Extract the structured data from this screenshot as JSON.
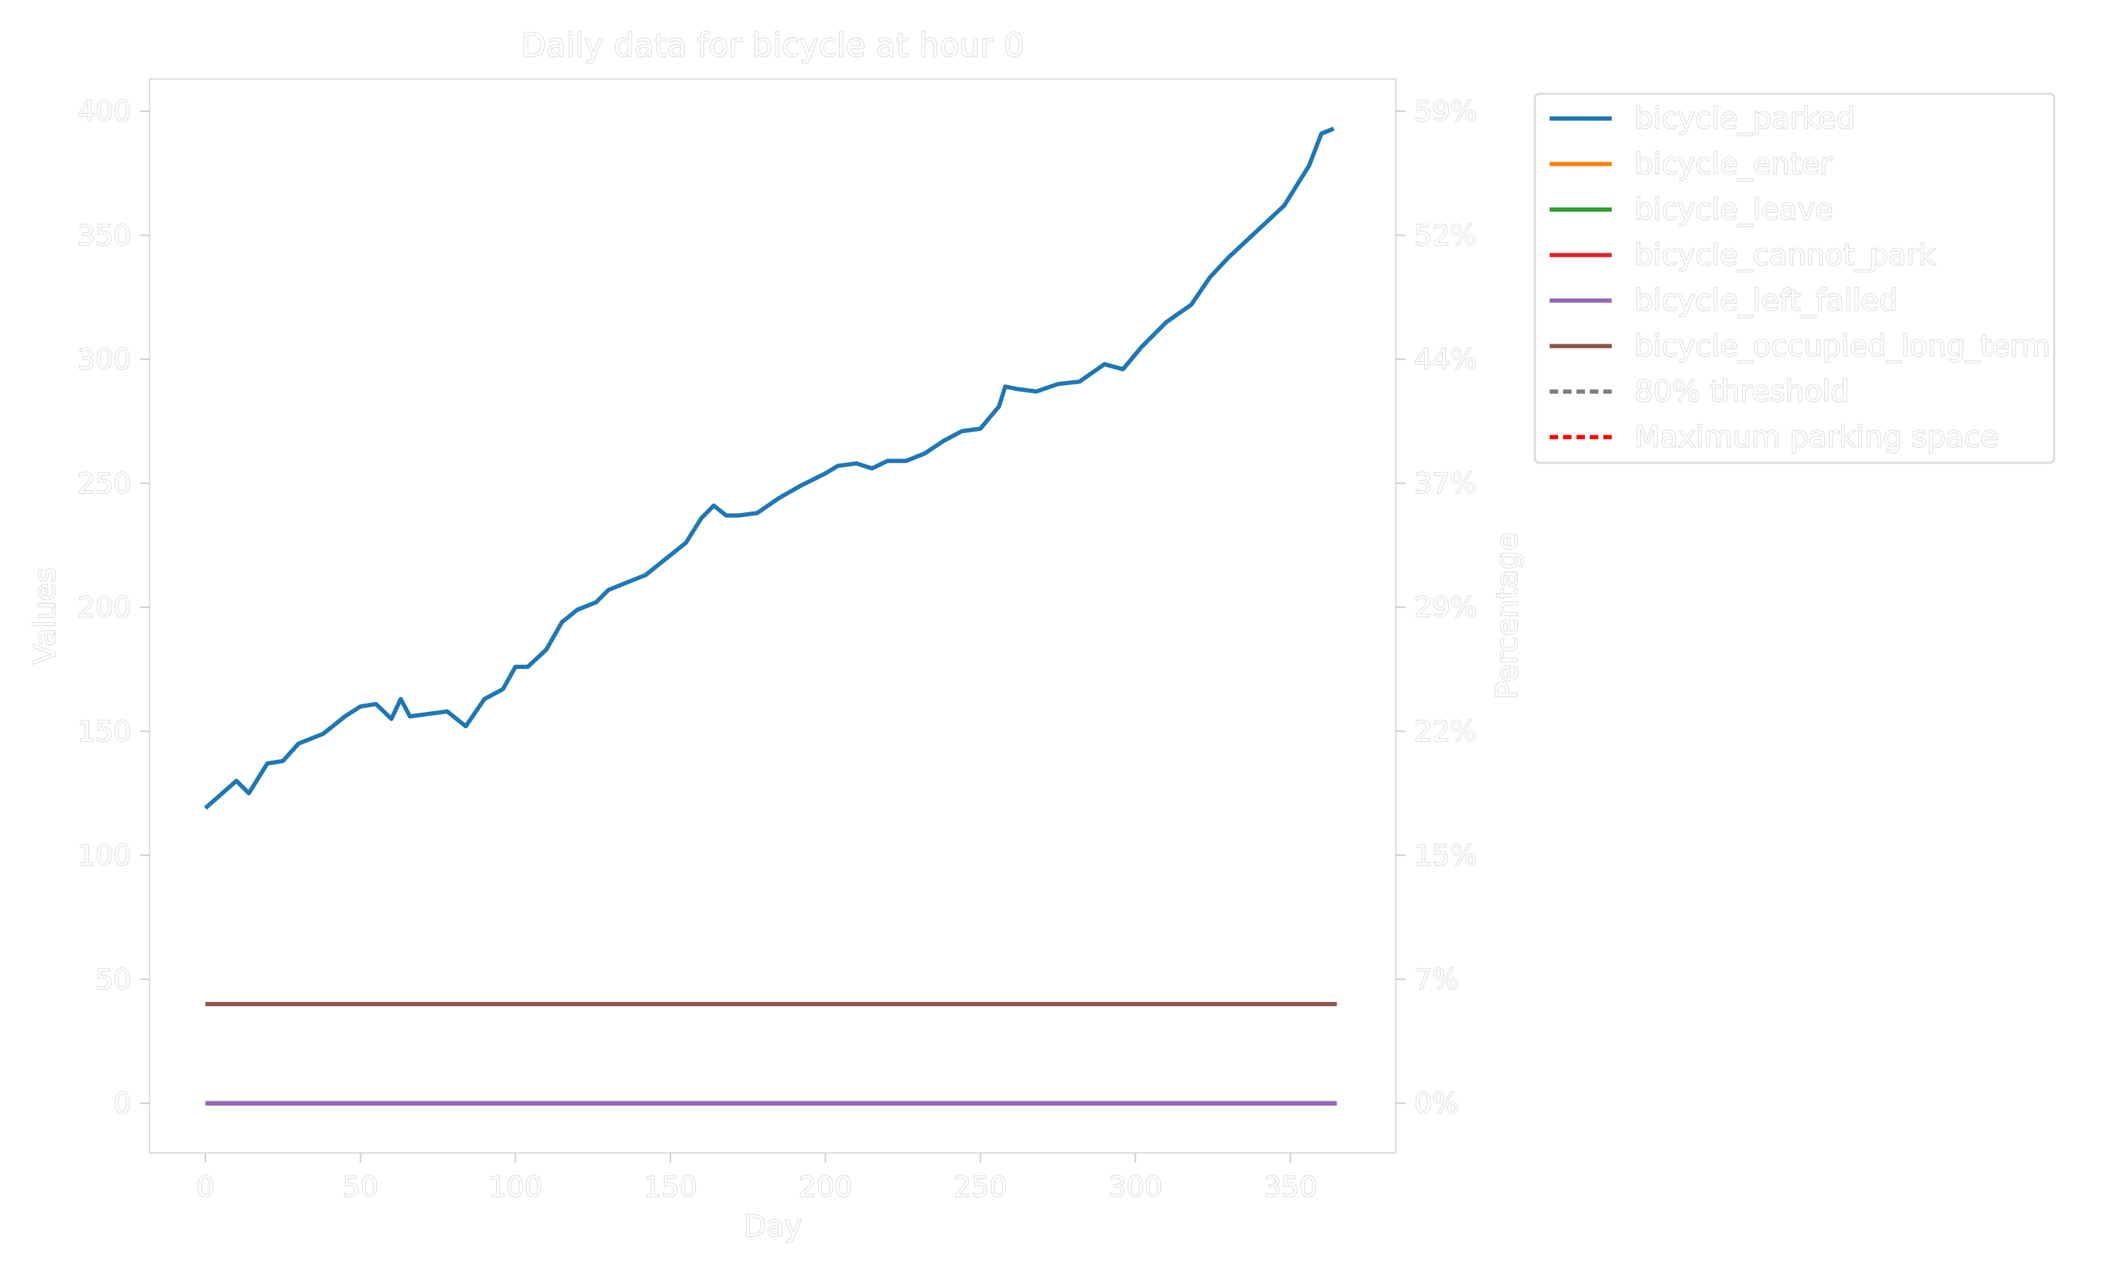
{
  "chart_data": {
    "type": "line",
    "title": "Daily data for bicycle at hour 0",
    "xlabel": "Day",
    "ylabel": "Values",
    "y2label": "Percentage",
    "xlim": [
      -18,
      384
    ],
    "ylim": [
      -20,
      413
    ],
    "x_ticks": [
      0,
      50,
      100,
      150,
      200,
      250,
      300,
      350
    ],
    "y_ticks": [
      0,
      50,
      100,
      150,
      200,
      250,
      300,
      350,
      400
    ],
    "y2_tick_labels": [
      "0%",
      "7%",
      "15%",
      "22%",
      "29%",
      "37%",
      "44%",
      "52%",
      "59%"
    ],
    "grid": false,
    "legend_position": "outside-right",
    "series": [
      {
        "name": "bicycle_parked",
        "color": "#1f77b4",
        "style": "solid",
        "x": [
          0,
          10,
          14,
          20,
          25,
          30,
          38,
          45,
          50,
          55,
          60,
          63,
          66,
          72,
          78,
          84,
          90,
          96,
          100,
          104,
          110,
          115,
          120,
          126,
          130,
          136,
          142,
          148,
          155,
          160,
          164,
          168,
          172,
          178,
          185,
          192,
          200,
          204,
          210,
          215,
          220,
          226,
          232,
          238,
          244,
          250,
          256,
          258,
          262,
          268,
          275,
          282,
          290,
          296,
          302,
          310,
          318,
          324,
          330,
          336,
          342,
          348,
          352,
          356,
          360,
          364
        ],
        "y": [
          119,
          130,
          125,
          137,
          138,
          145,
          149,
          156,
          160,
          161,
          155,
          163,
          156,
          157,
          158,
          152,
          163,
          167,
          176,
          176,
          183,
          194,
          199,
          202,
          207,
          210,
          213,
          219,
          226,
          236,
          241,
          237,
          237,
          238,
          244,
          249,
          254,
          257,
          258,
          256,
          259,
          259,
          262,
          267,
          271,
          272,
          281,
          289,
          288,
          287,
          290,
          291,
          298,
          296,
          305,
          315,
          322,
          333,
          341,
          348,
          355,
          362,
          370,
          378,
          391,
          393
        ]
      },
      {
        "name": "bicycle_enter",
        "color": "#ff7f0e",
        "style": "solid",
        "x": [
          0,
          365
        ],
        "y": [
          0,
          0
        ]
      },
      {
        "name": "bicycle_leave",
        "color": "#2ca02c",
        "style": "solid",
        "x": [
          0,
          365
        ],
        "y": [
          0,
          0
        ]
      },
      {
        "name": "bicycle_cannot_park",
        "color": "#d62728",
        "style": "solid",
        "x": [
          0,
          365
        ],
        "y": [
          0,
          0
        ]
      },
      {
        "name": "bicycle_left_failed",
        "color": "#9467bd",
        "style": "solid",
        "x": [
          0,
          365
        ],
        "y": [
          0,
          0
        ]
      },
      {
        "name": "bicycle_occupied_long_term",
        "color": "#8c564b",
        "style": "solid",
        "x": [
          0,
          365
        ],
        "y": [
          40,
          40
        ]
      },
      {
        "name": "80% threshold",
        "color": "#7f7f7f",
        "style": "dashed",
        "x": [],
        "y": []
      },
      {
        "name": "Maximum parking space",
        "color": "#ff0000",
        "style": "dashed",
        "x": [],
        "y": []
      }
    ]
  }
}
